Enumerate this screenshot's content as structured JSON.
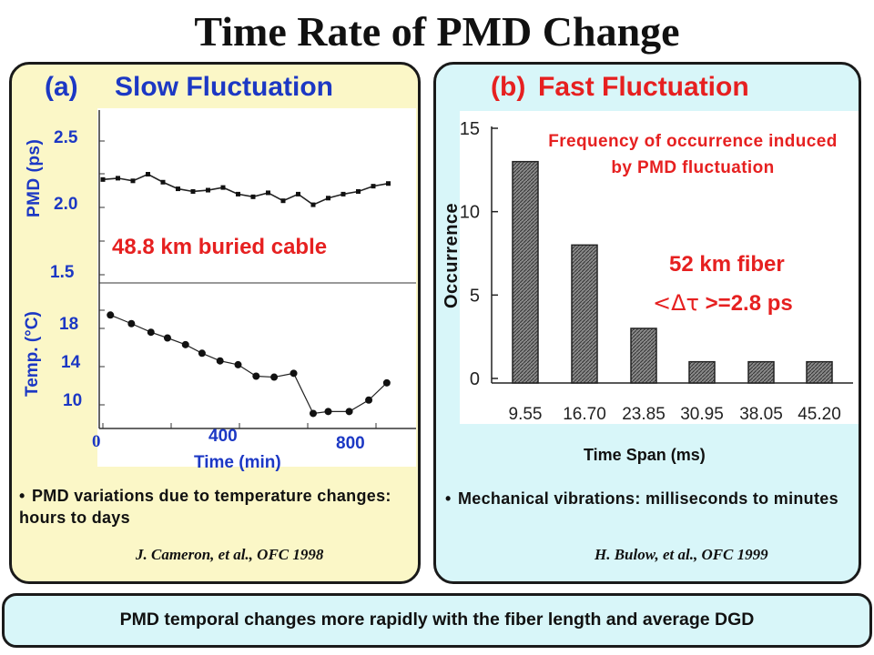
{
  "title": "Time Rate of PMD Change",
  "panel_a": {
    "label": "(a)",
    "heading": "Slow Fluctuation",
    "annotation": "48.8 km buried cable",
    "pmd_axis_label": "PMD (ps)",
    "temp_axis_label": "Temp. (°C)",
    "time_axis_label": "Time (min)",
    "pmd_ticks": [
      "2.5",
      "2.0",
      "1.5"
    ],
    "temp_ticks": [
      "18",
      "14",
      "10"
    ],
    "time_ticks": [
      "0",
      "400",
      "800"
    ],
    "bullet": "PMD variations due to temperature changes: hours to days",
    "citation": "J. Cameron, et al., OFC 1998"
  },
  "panel_b": {
    "label": "(b)",
    "heading": "Fast Fluctuation",
    "y_axis_label": "Occurrence",
    "x_axis_label": "Time Span (ms)",
    "chart_title": "Frequency of occurrence induced by PMD fluctuation",
    "annotation_fiber": "52 km fiber",
    "annotation_dgd": ">=2.8 ps",
    "y_ticks": [
      "15",
      "10",
      "5",
      "0"
    ],
    "bullet": "Mechanical vibrations: milliseconds to minutes",
    "citation": "H. Bulow, et al., OFC 1999"
  },
  "footer": "PMD temporal changes more rapidly with the fiber length and average DGD",
  "colors": {
    "blue": "#1c38c4",
    "red": "#e62020",
    "panel_a_bg": "#fbf7c7",
    "panel_b_bg": "#d8f6f9"
  },
  "chart_data": [
    {
      "type": "scatter",
      "title": "",
      "xlabel": "Time (min)",
      "ylabel": "PMD (ps)",
      "xlim": [
        0,
        1000
      ],
      "ylim": [
        1.5,
        2.6
      ],
      "series": [
        {
          "x": [
            0,
            50,
            100,
            150,
            200,
            250,
            300,
            350,
            400,
            450,
            500,
            550,
            600,
            650,
            700,
            750,
            800,
            850,
            900,
            950
          ],
          "values": [
            2.21,
            2.22,
            2.2,
            2.25,
            2.19,
            2.14,
            2.12,
            2.13,
            2.15,
            2.1,
            2.08,
            2.11,
            2.05,
            2.1,
            2.02,
            2.07,
            2.1,
            2.12,
            2.16,
            2.18
          ]
        }
      ]
    },
    {
      "type": "line",
      "title": "",
      "xlabel": "Time (min)",
      "ylabel": "Temp. (°C)",
      "xlim": [
        0,
        1000
      ],
      "ylim": [
        8,
        21
      ],
      "series": [
        {
          "x": [
            25,
            95,
            160,
            215,
            275,
            330,
            390,
            450,
            510,
            570,
            635,
            700,
            750,
            820,
            885,
            945
          ],
          "values": [
            19.4,
            18.5,
            17.6,
            17.0,
            16.3,
            15.4,
            14.6,
            14.2,
            13.0,
            12.9,
            13.3,
            9.1,
            9.3,
            9.3,
            10.5,
            12.3
          ]
        }
      ]
    },
    {
      "type": "bar",
      "title": "",
      "xlabel": "",
      "ylabel": "",
      "ylim": [
        0,
        15
      ],
      "categories": [
        "9.55",
        "16.70",
        "23.85",
        "30.95",
        "38.05",
        "45.20"
      ],
      "values": [
        13,
        8,
        3,
        1,
        1,
        1
      ]
    }
  ]
}
